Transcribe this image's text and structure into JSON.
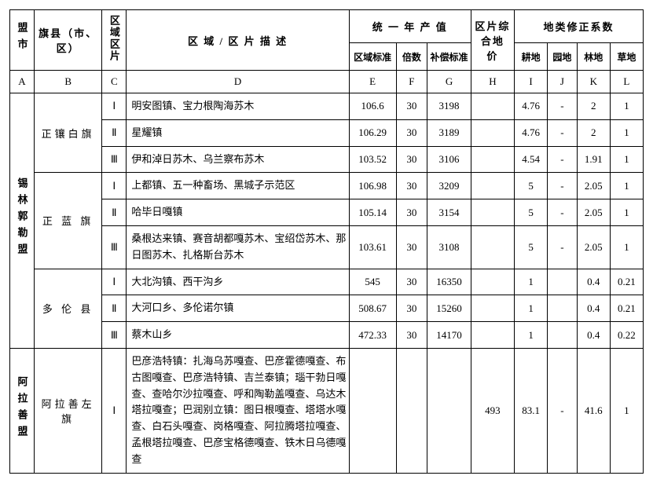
{
  "headers": {
    "colA": "盟市",
    "colB": "旗县（市、区）",
    "colC": "区域区片",
    "colD": "区 域 / 区 片 描 述",
    "unified": "统 一 年 产 值",
    "colE": "区域标准",
    "colF": "倍数",
    "colG": "补偿标准",
    "colH": "区片综合地    价",
    "landCorrection": "地类修正系数",
    "colI": "耕地",
    "colJ": "园地",
    "colK": "林地",
    "colL": "草地"
  },
  "letters": {
    "A": "A",
    "B": "B",
    "C": "C",
    "D": "D",
    "E": "E",
    "F": "F",
    "G": "G",
    "H": "H",
    "I": "I",
    "J": "J",
    "K": "K",
    "L": "L"
  },
  "league1": "锡林郭勒盟",
  "league2": "阿拉善盟",
  "county1": "正镶白旗",
  "county2": "正 蓝 旗",
  "county3": "多 伦 县",
  "county4": "阿拉善左旗",
  "zones": {
    "I": "Ⅰ",
    "II": "Ⅱ",
    "III": "Ⅲ"
  },
  "rows": [
    {
      "desc": "明安图镇、宝力根陶海苏木",
      "e": "106.6",
      "f": "30",
      "g": "3198",
      "h": "",
      "i": "4.76",
      "j": "-",
      "k": "2",
      "l": "1"
    },
    {
      "desc": "星耀镇",
      "e": "106.29",
      "f": "30",
      "g": "3189",
      "h": "",
      "i": "4.76",
      "j": "-",
      "k": "2",
      "l": "1"
    },
    {
      "desc": "伊和淖日苏木、乌兰察布苏木",
      "e": "103.52",
      "f": "30",
      "g": "3106",
      "h": "",
      "i": "4.54",
      "j": "-",
      "k": "1.91",
      "l": "1"
    },
    {
      "desc": "上都镇、五一种畜场、黑城子示范区",
      "e": "106.98",
      "f": "30",
      "g": "3209",
      "h": "",
      "i": "5",
      "j": "-",
      "k": "2.05",
      "l": "1"
    },
    {
      "desc": "哈毕日嘎镇",
      "e": "105.14",
      "f": "30",
      "g": "3154",
      "h": "",
      "i": "5",
      "j": "-",
      "k": "2.05",
      "l": "1"
    },
    {
      "desc": "桑根达来镇、赛音胡都嘎苏木、宝绍岱苏木、那日图苏木、扎格斯台苏木",
      "e": "103.61",
      "f": "30",
      "g": "3108",
      "h": "",
      "i": "5",
      "j": "-",
      "k": "2.05",
      "l": "1"
    },
    {
      "desc": "大北沟镇、西干沟乡",
      "e": "545",
      "f": "30",
      "g": "16350",
      "h": "",
      "i": "1",
      "j": "",
      "k": "0.4",
      "l": "0.21"
    },
    {
      "desc": "大河口乡、多伦诺尔镇",
      "e": "508.67",
      "f": "30",
      "g": "15260",
      "h": "",
      "i": "1",
      "j": "",
      "k": "0.4",
      "l": "0.21"
    },
    {
      "desc": "蔡木山乡",
      "e": "472.33",
      "f": "30",
      "g": "14170",
      "h": "",
      "i": "1",
      "j": "",
      "k": "0.4",
      "l": "0.22"
    },
    {
      "desc": "巴彦浩特镇：扎海乌苏嘎查、巴彦霍德嘎查、布古图嘎查、巴彦浩特镇、吉兰泰镇；瑙干勃日嘎查、查哈尔沙拉嘎查、呼和陶勒盖嘎查、乌达木塔拉嘎查；巴润别立镇：图日根嘎查、塔塔水嘎查、白石头嘎查、岗格嘎查、阿拉腾塔拉嘎查、孟根塔拉嘎查、巴彦宝格德嘎查、铁木日乌德嘎查",
      "e": "",
      "f": "",
      "g": "",
      "h": "493",
      "i": "83.1",
      "j": "-",
      "k": "41.6",
      "l": "1"
    }
  ]
}
